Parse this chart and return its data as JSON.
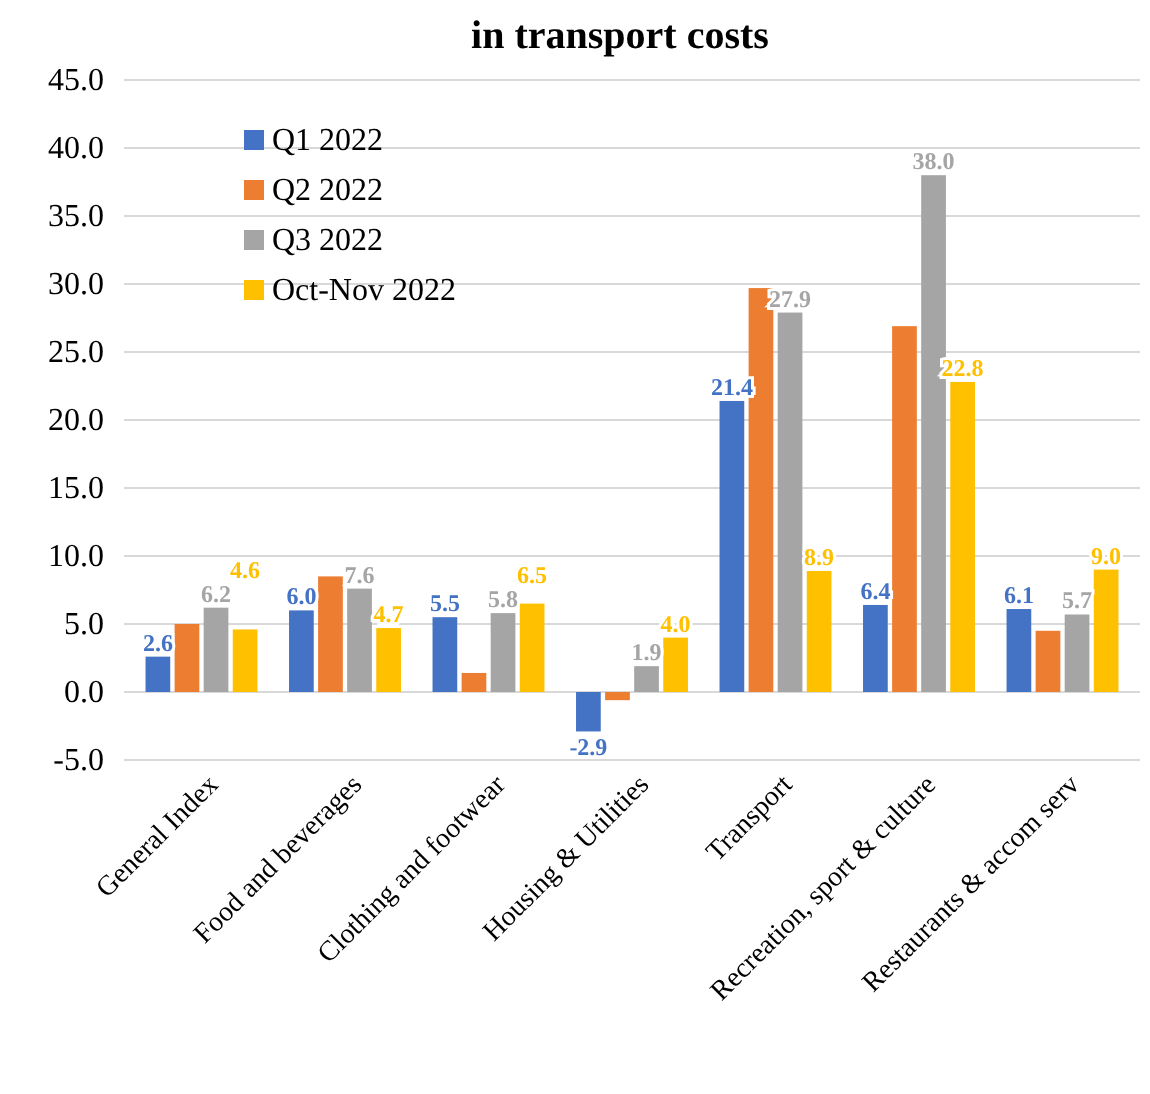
{
  "chart_data": {
    "type": "bar",
    "title": "in transport costs",
    "categories": [
      "General Index",
      "Food and beverages",
      "Clothing and footwear",
      "Housing & Utilities",
      "Transport",
      "Recreation, sport & culture",
      "Restaurants & accom serv"
    ],
    "series": [
      {
        "name": "Q1 2022",
        "color": "#4472c4",
        "values": [
          2.6,
          6.0,
          5.5,
          -2.9,
          21.4,
          6.4,
          6.1
        ],
        "value_labels": [
          "2.6",
          "6.0",
          "5.5",
          "-2.9",
          "21.4",
          "6.4",
          "6.1"
        ]
      },
      {
        "name": "Q2 2022",
        "color": "#ed7d31",
        "values": [
          5.0,
          8.5,
          1.4,
          -0.6,
          29.7,
          26.9,
          4.5
        ]
      },
      {
        "name": "Q3 2022",
        "color": "#a5a5a5",
        "values": [
          6.2,
          7.6,
          5.8,
          1.9,
          27.9,
          38.0,
          5.7
        ],
        "value_labels": [
          "6.2",
          "7.6",
          "5.8",
          "1.9",
          "27.9",
          "38.0",
          "5.7"
        ]
      },
      {
        "name": "Oct-Nov 2022",
        "color": "#ffc000",
        "values": [
          4.6,
          4.7,
          6.5,
          4.0,
          8.9,
          22.8,
          9.0
        ],
        "value_labels": [
          "4.6",
          "4.7",
          "6.5",
          "4.0",
          "8.9",
          "22.8",
          "9.0"
        ]
      }
    ],
    "ylim": [
      -5,
      45
    ],
    "yticks": [
      {
        "value": -5,
        "label": "-5.0"
      },
      {
        "value": 0,
        "label": "0.0"
      },
      {
        "value": 5,
        "label": "5.0"
      },
      {
        "value": 10,
        "label": "10.0"
      },
      {
        "value": 15,
        "label": "15.0"
      },
      {
        "value": 20,
        "label": "20.0"
      },
      {
        "value": 25,
        "label": "25.0"
      },
      {
        "value": 30,
        "label": "30.0"
      },
      {
        "value": 35,
        "label": "35.0"
      },
      {
        "value": 40,
        "label": "40.0"
      },
      {
        "value": 45,
        "label": "45.0"
      }
    ],
    "grid": "y",
    "legend": "top left"
  }
}
